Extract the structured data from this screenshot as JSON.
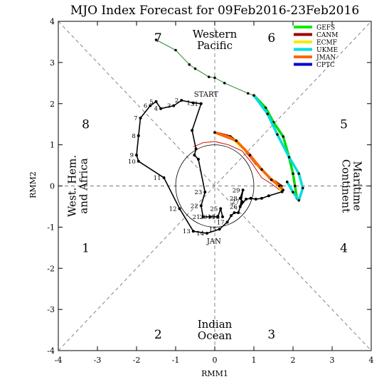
{
  "chart_data": {
    "type": "line",
    "title": "MJO Index Forecast for 09Feb2016-23Feb2016",
    "xlabel": "RMM1",
    "ylabel": "RMM2",
    "xlim": [
      -4,
      4
    ],
    "ylim": [
      -4,
      4
    ],
    "x_ticks": [
      "-4",
      "-3",
      "-2",
      "-1",
      "0",
      "1",
      "2",
      "3",
      "4"
    ],
    "y_ticks": [
      "-4",
      "-3",
      "-2",
      "-1",
      "0",
      "1",
      "2",
      "3",
      "4"
    ],
    "unit_circle_radius": 1,
    "phase_numbers": [
      {
        "label": "1",
        "x": -3.3,
        "y": -1.5
      },
      {
        "label": "2",
        "x": -1.45,
        "y": -3.6
      },
      {
        "label": "3",
        "x": 1.45,
        "y": -3.6
      },
      {
        "label": "4",
        "x": 3.3,
        "y": -1.5
      },
      {
        "label": "5",
        "x": 3.3,
        "y": 1.5
      },
      {
        "label": "6",
        "x": 1.45,
        "y": 3.6
      },
      {
        "label": "7",
        "x": -1.45,
        "y": 3.6
      },
      {
        "label": "8",
        "x": -3.3,
        "y": 1.5
      }
    ],
    "regions": [
      {
        "lines": [
          "Western",
          "Pacific"
        ],
        "x": 0,
        "y": 3.55,
        "rotate": 0
      },
      {
        "lines": [
          "Indian",
          "Ocean"
        ],
        "x": 0,
        "y": -3.5,
        "rotate": 0
      },
      {
        "lines": [
          "West. Hem.",
          "and Africa"
        ],
        "x": -3.5,
        "y": 0,
        "rotate": -90
      },
      {
        "lines": [
          "Maritime",
          "Continent"
        ],
        "x": 3.5,
        "y": 0,
        "rotate": 90
      }
    ],
    "annotations": [
      {
        "text": "START",
        "x": -0.22,
        "y": 2.17
      },
      {
        "text": "JAN",
        "x": -0.02,
        "y": -1.4
      }
    ],
    "observed": {
      "name": "",
      "color": "#000000",
      "points": [
        {
          "x": 1.72,
          "y": -0.14,
          "label": ""
        },
        {
          "x": 1.38,
          "y": -0.24,
          "label": ""
        },
        {
          "x": 1.2,
          "y": -0.3,
          "label": ""
        },
        {
          "x": 1.05,
          "y": -0.32,
          "label": ""
        },
        {
          "x": 0.92,
          "y": -0.3,
          "label": ""
        },
        {
          "x": 0.8,
          "y": -0.32,
          "label": ""
        },
        {
          "x": 0.65,
          "y": -0.5,
          "label": "26"
        },
        {
          "x": 0.72,
          "y": -0.1,
          "label": "29"
        },
        {
          "x": 0.65,
          "y": -0.3,
          "label": "28"
        },
        {
          "x": 0.7,
          "y": -0.38,
          "label": "27"
        },
        {
          "x": 0.6,
          "y": -0.65,
          "label": ""
        },
        {
          "x": 0.5,
          "y": -0.65,
          "label": ""
        },
        {
          "x": 0.42,
          "y": -0.72,
          "label": ""
        },
        {
          "x": 0.32,
          "y": -0.88,
          "label": "17"
        },
        {
          "x": 0.12,
          "y": -1.05,
          "label": "15"
        },
        {
          "x": -0.2,
          "y": -1.15,
          "label": "14"
        },
        {
          "x": -0.55,
          "y": -1.1,
          "label": "13"
        },
        {
          "x": -0.9,
          "y": -0.55,
          "label": "12"
        },
        {
          "x": -1.3,
          "y": 0.2,
          "label": "11"
        },
        {
          "x": -1.95,
          "y": 0.6,
          "label": "10"
        },
        {
          "x": -2.0,
          "y": 0.75,
          "label": "9"
        },
        {
          "x": -1.95,
          "y": 1.22,
          "label": "8"
        },
        {
          "x": -1.9,
          "y": 1.65,
          "label": "7"
        },
        {
          "x": -1.65,
          "y": 1.95,
          "label": "6"
        },
        {
          "x": -1.5,
          "y": 2.05,
          "label": "5"
        },
        {
          "x": -1.38,
          "y": 1.88,
          "label": "4"
        },
        {
          "x": -1.05,
          "y": 1.95,
          "label": "3"
        },
        {
          "x": -0.85,
          "y": 2.08,
          "label": "2"
        },
        {
          "x": -0.55,
          "y": 2.02,
          "label": "1"
        },
        {
          "x": -0.35,
          "y": 2.0,
          "label": "31"
        },
        {
          "x": -0.58,
          "y": 1.35,
          "label": ""
        },
        {
          "x": -0.48,
          "y": 0.9,
          "label": ""
        },
        {
          "x": -0.52,
          "y": 0.75,
          "label": ""
        },
        {
          "x": -0.42,
          "y": 0.65,
          "label": ""
        },
        {
          "x": -0.25,
          "y": -0.15,
          "label": "23"
        },
        {
          "x": -0.35,
          "y": -0.48,
          "label": "22"
        },
        {
          "x": -0.3,
          "y": -0.75,
          "label": "21"
        },
        {
          "x": -0.12,
          "y": -0.75,
          "label": "20"
        },
        {
          "x": 0.08,
          "y": -0.75,
          "label": "19"
        },
        {
          "x": 0.15,
          "y": -0.55,
          "label": "25"
        },
        {
          "x": 0.2,
          "y": -0.75,
          "label": "18"
        }
      ]
    },
    "forecast_thin": {
      "name": "",
      "color": "#2a8a2a",
      "points": [
        {
          "x": -1.5,
          "y": 3.55
        },
        {
          "x": -1.0,
          "y": 3.3
        },
        {
          "x": -0.65,
          "y": 2.95
        },
        {
          "x": -0.5,
          "y": 2.85
        },
        {
          "x": -0.15,
          "y": 2.65
        },
        {
          "x": 0.0,
          "y": 2.63
        },
        {
          "x": 0.25,
          "y": 2.5
        },
        {
          "x": 0.85,
          "y": 2.25
        },
        {
          "x": 1.0,
          "y": 2.2
        }
      ]
    },
    "forecast_series": [
      {
        "name": "GEFS",
        "color": "#00dd00",
        "points": [
          {
            "x": 1.0,
            "y": 2.2
          },
          {
            "x": 1.3,
            "y": 1.9
          },
          {
            "x": 1.5,
            "y": 1.55
          },
          {
            "x": 1.75,
            "y": 1.2
          },
          {
            "x": 1.9,
            "y": 0.7
          },
          {
            "x": 2.0,
            "y": 0.3
          },
          {
            "x": 2.05,
            "y": 0.0
          },
          {
            "x": 2.1,
            "y": -0.3
          }
        ]
      },
      {
        "name": "CANM",
        "color": "#aa0000",
        "points": [
          {
            "x": 0.0,
            "y": 1.3
          },
          {
            "x": 0.4,
            "y": 1.2
          },
          {
            "x": 0.75,
            "y": 0.9
          },
          {
            "x": 1.05,
            "y": 0.55
          },
          {
            "x": 1.3,
            "y": 0.3
          },
          {
            "x": 1.45,
            "y": 0.15
          },
          {
            "x": 1.55,
            "y": 0.1
          },
          {
            "x": 1.7,
            "y": 0.0
          },
          {
            "x": 1.72,
            "y": -0.14
          }
        ]
      },
      {
        "name": "ECMF",
        "color": "#eeee00",
        "points": [
          {
            "x": 0.0,
            "y": 1.3
          },
          {
            "x": 0.45,
            "y": 1.15
          },
          {
            "x": 0.85,
            "y": 0.8
          },
          {
            "x": 1.15,
            "y": 0.45
          },
          {
            "x": 1.4,
            "y": 0.2
          },
          {
            "x": 1.6,
            "y": 0.05
          },
          {
            "x": 1.72,
            "y": -0.14
          }
        ]
      },
      {
        "name": "UKME",
        "color": "#00dddd",
        "points": [
          {
            "x": 1.0,
            "y": 2.2
          },
          {
            "x": 1.35,
            "y": 1.75
          },
          {
            "x": 1.6,
            "y": 1.25
          },
          {
            "x": 1.9,
            "y": 0.7
          },
          {
            "x": 2.15,
            "y": 0.3
          },
          {
            "x": 2.25,
            "y": -0.05
          },
          {
            "x": 2.15,
            "y": -0.35
          },
          {
            "x": 2.0,
            "y": -0.15
          },
          {
            "x": 1.85,
            "y": 0.1
          }
        ]
      },
      {
        "name": "JMAN",
        "color": "#ff6600",
        "points": [
          {
            "x": 0.0,
            "y": 1.3
          },
          {
            "x": 0.55,
            "y": 1.1
          },
          {
            "x": 0.9,
            "y": 0.75
          },
          {
            "x": 1.2,
            "y": 0.4
          },
          {
            "x": 1.45,
            "y": 0.15
          },
          {
            "x": 1.65,
            "y": 0.0
          },
          {
            "x": 1.75,
            "y": -0.1
          }
        ]
      },
      {
        "name": "CPTC",
        "color": "#0000dd",
        "points": []
      }
    ],
    "red_thin": {
      "name": "",
      "color": "#cc0000",
      "points": [
        {
          "x": -0.55,
          "y": 0.95
        },
        {
          "x": -0.3,
          "y": 1.05
        },
        {
          "x": 0.0,
          "y": 1.08
        },
        {
          "x": 0.35,
          "y": 1.0
        },
        {
          "x": 0.7,
          "y": 0.85
        },
        {
          "x": 0.95,
          "y": 0.55
        },
        {
          "x": 1.2,
          "y": 0.2
        },
        {
          "x": 1.45,
          "y": 0.05
        },
        {
          "x": 1.72,
          "y": -0.14
        }
      ]
    },
    "legend": {
      "placement": "top-right",
      "entries": [
        {
          "label": "GEFS",
          "color": "#00ee00"
        },
        {
          "label": "CANM",
          "color": "#990000"
        },
        {
          "label": "ECMF",
          "color": "#eeee00"
        },
        {
          "label": "UKME",
          "color": "#00dddd"
        },
        {
          "label": "JMAN",
          "color": "#ff6600"
        },
        {
          "label": "CPTC",
          "color": "#0000cc"
        }
      ]
    }
  }
}
